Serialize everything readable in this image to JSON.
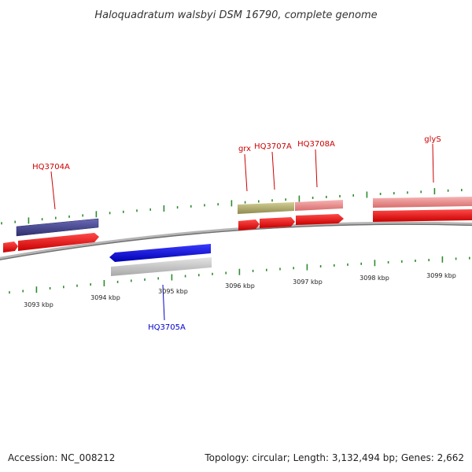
{
  "title": "Haloquadratum walsbyi DSM 16790, complete genome",
  "footer": {
    "accession": "Accession: NC_008212",
    "summary": "Topology: circular; Length: 3,132,494 bp; Genes: 2,662"
  },
  "scale_labels": [
    "3093 kbp",
    "3094 kbp",
    "3095 kbp",
    "3096 kbp",
    "3097 kbp",
    "3098 kbp",
    "3099 kbp"
  ],
  "gene_labels": {
    "HQ3704A": "HQ3704A",
    "grx": "grx",
    "HQ3707A": "HQ3707A",
    "HQ3708A": "HQ3708A",
    "glyS": "glyS",
    "HQ3705A": "HQ3705A"
  },
  "colors": {
    "backbone": "#808080",
    "tick": "#2e8b2e",
    "cds_red": "#ee0000",
    "forward_label": "#cc0000",
    "reverse_label": "#0000cc",
    "reverse_cds": "#0000ee",
    "feature_purple": "#4a4a90",
    "feature_olive": "#b5b070",
    "feature_pink": "#ef8a8a",
    "feature_grey": "#c8c8c8"
  }
}
